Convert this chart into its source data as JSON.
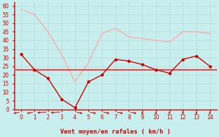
{
  "title": "",
  "xlabel": "Vent moyen/en rafales ( km/h )",
  "bg_color": "#c8eeee",
  "grid_color": "#b8e0e0",
  "x": [
    0,
    1,
    2,
    3,
    4,
    5,
    6,
    7,
    8,
    9,
    10,
    11,
    12,
    13,
    14
  ],
  "line1_y": [
    58,
    55,
    45,
    32,
    16,
    27,
    44,
    47,
    42,
    41,
    40,
    39,
    45,
    45,
    44
  ],
  "line1_color": "#ffaaaa",
  "line2_y": [
    32,
    23,
    18,
    6,
    1,
    16,
    20,
    29,
    28,
    26,
    23,
    21,
    29,
    31,
    25
  ],
  "line2_color": "#cc0000",
  "line3_y": 23,
  "line3_color": "#ee4444",
  "ylim": [
    0,
    62
  ],
  "xlim": [
    -0.5,
    14.5
  ],
  "yticks": [
    0,
    5,
    10,
    15,
    20,
    25,
    30,
    35,
    40,
    45,
    50,
    55,
    60
  ],
  "xticks": [
    0,
    1,
    2,
    3,
    4,
    5,
    6,
    7,
    8,
    9,
    10,
    11,
    12,
    13,
    14
  ],
  "xlabel_color": "#cc0000",
  "tick_color": "#cc0000",
  "arrow_color": "#cc0000",
  "spine_color": "#cc0000",
  "arrow_angles_deg": [
    225,
    225,
    200,
    200,
    315,
    315,
    315,
    315,
    315,
    270,
    270,
    270,
    270,
    270,
    270
  ]
}
